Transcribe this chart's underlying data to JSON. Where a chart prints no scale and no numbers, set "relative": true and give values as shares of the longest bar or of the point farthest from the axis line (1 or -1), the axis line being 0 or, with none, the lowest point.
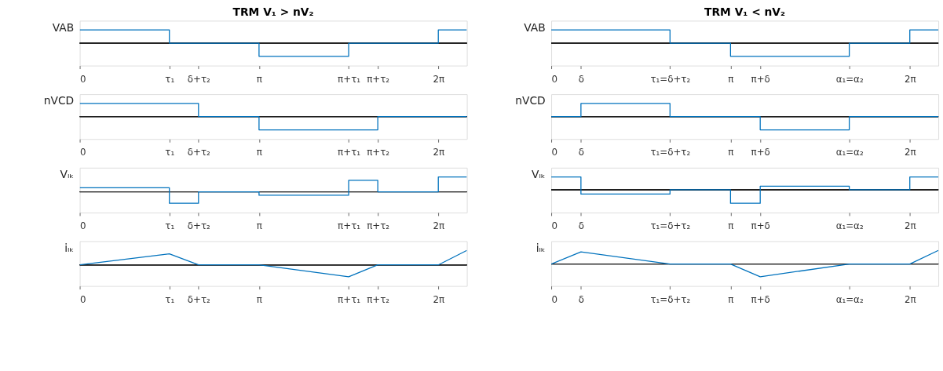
{
  "chart_data": [
    {
      "type": "step",
      "title": "TRM   V₁ > nV₂",
      "ylabel": "VAB",
      "relative": true,
      "grid": false,
      "xlim": [
        0,
        6.78
      ],
      "xticks": [
        0,
        {
          "value": 1.57,
          "label": "τ₁"
        },
        {
          "value": 2.08,
          "label": "δ+τ₂"
        },
        {
          "value": 3.14,
          "label": "π"
        },
        {
          "value": 4.71,
          "label": "π+τ₁"
        },
        {
          "value": 5.22,
          "label": "π+τ₂"
        },
        {
          "value": 6.28,
          "label": "2π"
        }
      ],
      "x": [
        0,
        1.57,
        3.14,
        4.71,
        6.28,
        6.78
      ],
      "values": [
        1,
        0,
        -1,
        0,
        1,
        1
      ],
      "color": "#0072bd"
    },
    {
      "type": "step",
      "ylabel": "nVCD",
      "relative": true,
      "grid": false,
      "xlim": [
        0,
        6.78
      ],
      "xticks": [
        0,
        {
          "value": 1.57,
          "label": "τ₁"
        },
        {
          "value": 2.08,
          "label": "δ+τ₂"
        },
        {
          "value": 3.14,
          "label": "π"
        },
        {
          "value": 4.71,
          "label": "π+τ₁"
        },
        {
          "value": 5.22,
          "label": "π+τ₂"
        },
        {
          "value": 6.28,
          "label": "2π"
        }
      ],
      "x": [
        0,
        2.08,
        3.14,
        5.22,
        6.78
      ],
      "values": [
        1,
        0,
        -1,
        0,
        0
      ],
      "color": "#0072bd"
    },
    {
      "type": "step",
      "ylabel": "Vₗₖ",
      "relative": true,
      "grid": false,
      "xlim": [
        0,
        6.78
      ],
      "xticks": [
        0,
        {
          "value": 1.57,
          "label": "τ₁"
        },
        {
          "value": 2.08,
          "label": "δ+τ₂"
        },
        {
          "value": 3.14,
          "label": "π"
        },
        {
          "value": 4.71,
          "label": "π+τ₁"
        },
        {
          "value": 5.22,
          "label": "π+τ₂"
        },
        {
          "value": 6.28,
          "label": "2π"
        }
      ],
      "x": [
        0,
        1.57,
        2.08,
        3.14,
        4.71,
        5.22,
        6.28,
        6.78
      ],
      "values": [
        0.27,
        -0.77,
        0,
        -0.23,
        0.77,
        0,
        1,
        1
      ],
      "color": "#0072bd"
    },
    {
      "type": "line",
      "ylabel": "iₗₖ",
      "relative": true,
      "grid": false,
      "xlim": [
        0,
        6.78
      ],
      "xticks": [
        0,
        {
          "value": 1.57,
          "label": "τ₁"
        },
        {
          "value": 2.08,
          "label": "δ+τ₂"
        },
        {
          "value": 3.14,
          "label": "π"
        },
        {
          "value": 4.71,
          "label": "π+τ₁"
        },
        {
          "value": 5.22,
          "label": "π+τ₂"
        },
        {
          "value": 6.28,
          "label": "2π"
        }
      ],
      "x": [
        0,
        1.57,
        2.08,
        3.14,
        4.71,
        5.22,
        6.28,
        6.78
      ],
      "values": [
        0,
        0.76,
        0,
        0,
        -0.82,
        0,
        0,
        1
      ],
      "color": "#0072bd"
    },
    {
      "type": "step",
      "title": "TRM   V₁ < nV₂",
      "ylabel": "VAB",
      "relative": true,
      "grid": false,
      "xlim": [
        0,
        6.78
      ],
      "xticks": [
        0,
        {
          "value": 0.52,
          "label": "δ"
        },
        {
          "value": 2.08,
          "label": "τ₁=δ+τ₂"
        },
        {
          "value": 3.14,
          "label": "π"
        },
        {
          "value": 3.66,
          "label": "π+δ"
        },
        {
          "value": 5.22,
          "label": "α₁=α₂"
        },
        {
          "value": 6.28,
          "label": "2π"
        }
      ],
      "x": [
        0,
        2.08,
        3.14,
        5.22,
        6.28,
        6.78
      ],
      "values": [
        1,
        0,
        -1,
        0,
        1,
        1
      ],
      "color": "#0072bd"
    },
    {
      "type": "step",
      "ylabel": "nVCD",
      "relative": true,
      "grid": false,
      "xlim": [
        0,
        6.78
      ],
      "xticks": [
        0,
        {
          "value": 0.52,
          "label": "δ"
        },
        {
          "value": 2.08,
          "label": "τ₁=δ+τ₂"
        },
        {
          "value": 3.14,
          "label": "π"
        },
        {
          "value": 3.66,
          "label": "π+δ"
        },
        {
          "value": 5.22,
          "label": "α₁=α₂"
        },
        {
          "value": 6.28,
          "label": "2π"
        }
      ],
      "x": [
        0,
        0.52,
        2.08,
        3.66,
        5.22,
        6.78
      ],
      "values": [
        0,
        1,
        0,
        -1,
        0,
        0
      ],
      "color": "#0072bd"
    },
    {
      "type": "step",
      "ylabel": "Vₗₖ",
      "relative": true,
      "grid": false,
      "xlim": [
        0,
        6.78
      ],
      "xticks": [
        0,
        {
          "value": 0.52,
          "label": "δ"
        },
        {
          "value": 2.08,
          "label": "τ₁=δ+τ₂"
        },
        {
          "value": 3.14,
          "label": "π"
        },
        {
          "value": 3.66,
          "label": "π+δ"
        },
        {
          "value": 5.22,
          "label": "α₁=α₂"
        },
        {
          "value": 6.28,
          "label": "2π"
        }
      ],
      "x": [
        0,
        0.52,
        2.08,
        3.14,
        3.66,
        5.22,
        6.28,
        6.78
      ],
      "values": [
        0.95,
        -0.32,
        0,
        -1,
        0.27,
        0,
        0.95,
        0.95
      ],
      "color": "#0072bd"
    },
    {
      "type": "line",
      "ylabel": "iₗₖ",
      "relative": true,
      "grid": false,
      "xlim": [
        0,
        6.78
      ],
      "xticks": [
        0,
        {
          "value": 0.52,
          "label": "δ"
        },
        {
          "value": 2.08,
          "label": "τ₁=δ+τ₂"
        },
        {
          "value": 3.14,
          "label": "π"
        },
        {
          "value": 3.66,
          "label": "π+δ"
        },
        {
          "value": 5.22,
          "label": "α₁=α₂"
        },
        {
          "value": 6.28,
          "label": "2π"
        }
      ],
      "x": [
        0,
        0.52,
        2.08,
        3.14,
        3.66,
        5.22,
        6.28,
        6.78
      ],
      "values": [
        0,
        0.89,
        0,
        0,
        -0.94,
        0,
        0,
        1
      ],
      "color": "#0072bd"
    }
  ]
}
